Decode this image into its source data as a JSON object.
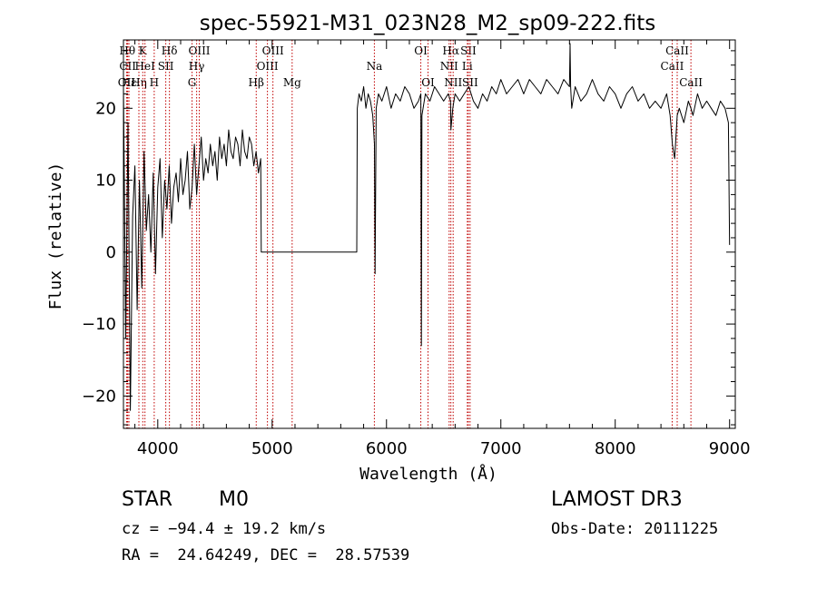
{
  "chart_data": {
    "type": "line",
    "title": "spec-55921-M31_023N28_M2_sp09-222.fits",
    "xlabel": "Wavelength (Å)",
    "ylabel": "Flux (relative)",
    "xlim": [
      3700,
      9050
    ],
    "ylim": [
      -24.5,
      29.5
    ],
    "x_ticks": [
      4000,
      5000,
      6000,
      7000,
      8000,
      9000
    ],
    "x_tick_labels": [
      "4000",
      "5000",
      "6000",
      "7000",
      "8000",
      "9000"
    ],
    "y_ticks": [
      -20,
      -10,
      0,
      10,
      20
    ],
    "y_tick_labels": [
      "−20",
      "−10",
      "0",
      "10",
      "20"
    ],
    "grid": false,
    "series": [
      {
        "color": "#000000",
        "x": [
          3700,
          3720,
          3740,
          3760,
          3780,
          3800,
          3820,
          3840,
          3860,
          3880,
          3900,
          3920,
          3940,
          3960,
          3980,
          4000,
          4020,
          4040,
          4060,
          4080,
          4100,
          4120,
          4140,
          4160,
          4180,
          4200,
          4220,
          4240,
          4260,
          4280,
          4300,
          4320,
          4340,
          4360,
          4380,
          4400,
          4420,
          4440,
          4460,
          4480,
          4500,
          4520,
          4540,
          4560,
          4580,
          4600,
          4620,
          4640,
          4660,
          4680,
          4700,
          4720,
          4740,
          4760,
          4780,
          4800,
          4820,
          4840,
          4860,
          4880,
          4900,
          4905,
          5000,
          5200,
          5400,
          5600,
          5740,
          5745,
          5760,
          5780,
          5800,
          5820,
          5840,
          5860,
          5880,
          5895,
          5900,
          5910,
          5930,
          5960,
          6000,
          6040,
          6080,
          6120,
          6160,
          6200,
          6240,
          6280,
          6300,
          6305,
          6310,
          6340,
          6380,
          6420,
          6460,
          6500,
          6540,
          6560,
          6563,
          6580,
          6600,
          6640,
          6680,
          6720,
          6760,
          6800,
          6840,
          6880,
          6920,
          6960,
          7000,
          7050,
          7100,
          7150,
          7200,
          7250,
          7300,
          7350,
          7400,
          7450,
          7500,
          7550,
          7600,
          7605,
          7610,
          7620,
          7650,
          7700,
          7750,
          7800,
          7850,
          7900,
          7950,
          8000,
          8050,
          8100,
          8150,
          8200,
          8250,
          8300,
          8350,
          8400,
          8450,
          8480,
          8500,
          8520,
          8542,
          8560,
          8600,
          8640,
          8662,
          8680,
          8720,
          8760,
          8800,
          8840,
          8880,
          8920,
          8960,
          8990,
          9000
        ],
        "y": [
          23,
          -12,
          18,
          -22,
          5,
          12,
          -8,
          10,
          -5,
          14,
          3,
          8,
          0,
          11,
          -3,
          9,
          13,
          2,
          10,
          6,
          12,
          4,
          9,
          11,
          7,
          13,
          8,
          10,
          14,
          6,
          9,
          15,
          8,
          12,
          16,
          10,
          13,
          11,
          15,
          12,
          14,
          10,
          16,
          13,
          15,
          12,
          17,
          14,
          13,
          16,
          15,
          12,
          17,
          14,
          13,
          16,
          15,
          12,
          14,
          11,
          13,
          0,
          0,
          0,
          0,
          0,
          0,
          20,
          22,
          21,
          23,
          20,
          22,
          21,
          19,
          15,
          -3,
          20,
          22,
          21,
          23,
          20,
          22,
          21,
          23,
          22,
          20,
          21,
          22,
          -13,
          19,
          22,
          21,
          23,
          22,
          21,
          22,
          21,
          17,
          20,
          22,
          21,
          22,
          23,
          21,
          20,
          22,
          21,
          23,
          22,
          24,
          22,
          23,
          24,
          22,
          24,
          23,
          22,
          24,
          23,
          22,
          24,
          23,
          29,
          23,
          20,
          23,
          21,
          22,
          24,
          22,
          21,
          23,
          22,
          20,
          22,
          23,
          21,
          22,
          20,
          21,
          20,
          22,
          19,
          15,
          13,
          19,
          20,
          18,
          21,
          20,
          19,
          22,
          20,
          21,
          20,
          19,
          21,
          20,
          18,
          1
        ]
      }
    ],
    "line_markers": [
      {
        "label": "OII",
        "wavelength": 3727,
        "row": 3
      },
      {
        "label": "Hθ",
        "wavelength": 3734,
        "row": 1
      },
      {
        "label": "CII",
        "wavelength": 3737,
        "row": 2
      },
      {
        "label": "Hε",
        "wavelength": 3748,
        "row": 3
      },
      {
        "label": "Hη",
        "wavelength": 3835,
        "row": 3
      },
      {
        "label": "K",
        "wavelength": 3869,
        "row": 1
      },
      {
        "label": "HeI",
        "wavelength": 3888,
        "row": 2
      },
      {
        "label": "H",
        "wavelength": 3969,
        "row": 3
      },
      {
        "label": "SII",
        "wavelength": 4070,
        "row": 2
      },
      {
        "label": "Hδ",
        "wavelength": 4102,
        "row": 1
      },
      {
        "label": "G",
        "wavelength": 4300,
        "row": 3
      },
      {
        "label": "Hγ",
        "wavelength": 4340,
        "row": 2
      },
      {
        "label": "OIII",
        "wavelength": 4363,
        "row": 1
      },
      {
        "label": "Hβ",
        "wavelength": 4861,
        "row": 3
      },
      {
        "label": "OIII",
        "wavelength": 4959,
        "row": 2
      },
      {
        "label": "OIII",
        "wavelength": 5007,
        "row": 1
      },
      {
        "label": "Mg",
        "wavelength": 5175,
        "row": 3
      },
      {
        "label": "Na",
        "wavelength": 5894,
        "row": 2
      },
      {
        "label": "OI",
        "wavelength": 6300,
        "row": 1
      },
      {
        "label": "OI",
        "wavelength": 6363,
        "row": 3
      },
      {
        "label": "NII",
        "wavelength": 6548,
        "row": 2
      },
      {
        "label": "Hα",
        "wavelength": 6563,
        "row": 1
      },
      {
        "label": "NII",
        "wavelength": 6583,
        "row": 3
      },
      {
        "label": "Li",
        "wavelength": 6707,
        "row": 2
      },
      {
        "label": "SII",
        "wavelength": 6716,
        "row": 1
      },
      {
        "label": "SII",
        "wavelength": 6731,
        "row": 3
      },
      {
        "label": "CaII",
        "wavelength": 8498,
        "row": 2
      },
      {
        "label": "CaII",
        "wavelength": 8542,
        "row": 1
      },
      {
        "label": "CaII",
        "wavelength": 8662,
        "row": 3
      }
    ]
  },
  "footer": {
    "object_class": "STAR",
    "subclass": "M0",
    "survey": "LAMOST DR3",
    "redshift": "cz = −94.4 ± 19.2 km/s",
    "obs_date": "Obs-Date: 20111225",
    "coords": "RA =  24.64249, DEC =  28.57539"
  },
  "colors": {
    "spectrum": "#000000",
    "line_marker": "#c00000",
    "axes": "#000000"
  }
}
